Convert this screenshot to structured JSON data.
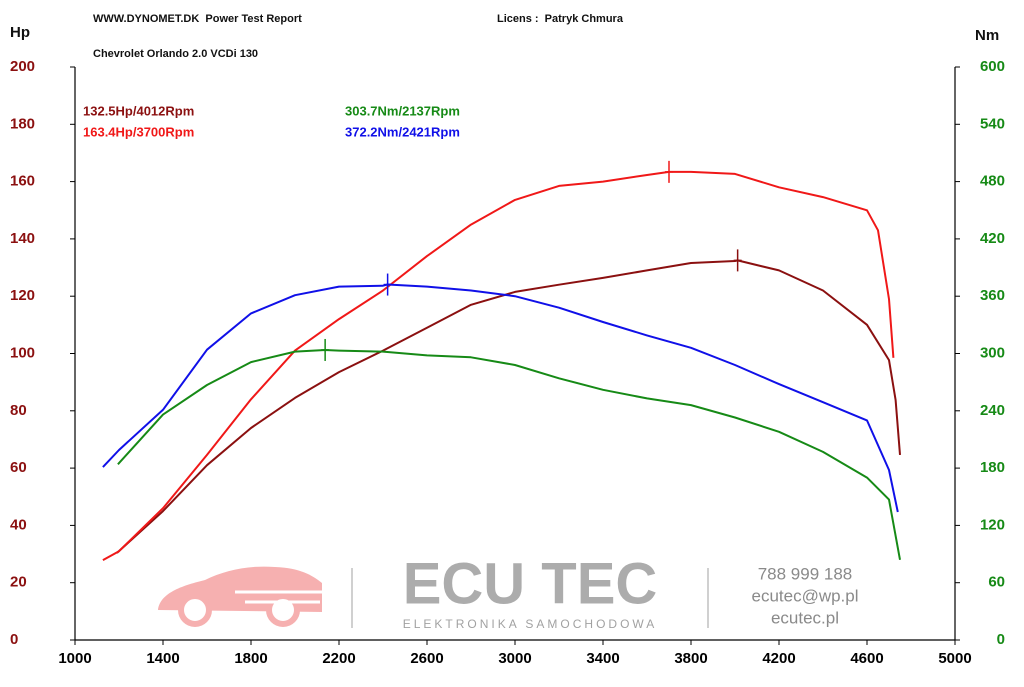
{
  "chart_data": {
    "type": "line",
    "title": "WWW.DYNOMET.DK  Power Test Report",
    "license": "Licens :  Patryk Chmura",
    "subtitle": "Chevrolet Orlando 2.0 VCDi 130",
    "y_label": "Hp",
    "y2_label": "Nm",
    "xlim": [
      1000,
      5000
    ],
    "xticks": [
      1000,
      1400,
      1800,
      2200,
      2600,
      3000,
      3400,
      3800,
      4200,
      4600,
      5000
    ],
    "ylim": [
      0,
      200
    ],
    "yticks": [
      0,
      20,
      40,
      60,
      80,
      100,
      120,
      140,
      160,
      180,
      200
    ],
    "y2lim": [
      0,
      600
    ],
    "y2ticks": [
      0,
      60,
      120,
      180,
      240,
      300,
      360,
      420,
      480,
      540,
      600
    ],
    "y_color": "#8b1010",
    "y2_color": "#168a16",
    "grid": false,
    "series": [
      {
        "name": "132.5Hp/4012Rpm",
        "color": "#8b1010",
        "axis": "y",
        "x": [
          1191,
          1400,
          1600,
          1800,
          2000,
          2200,
          2400,
          2600,
          2800,
          3000,
          3200,
          3400,
          3600,
          3800,
          4000,
          4012,
          4200,
          4400,
          4600,
          4700,
          4730,
          4750
        ],
        "values": [
          30.4,
          45,
          61,
          74,
          84.5,
          93.5,
          101,
          109,
          117,
          121.5,
          124,
          126.4,
          129,
          131.6,
          132.3,
          132.5,
          129,
          122,
          110,
          97.7,
          83.8,
          64.6
        ],
        "peak": {
          "x": 4012,
          "y": 132.5
        }
      },
      {
        "name": "163.4Hp/3700Rpm",
        "color": "#f01818",
        "axis": "y",
        "x": [
          1127,
          1200,
          1400,
          1600,
          1800,
          2000,
          2200,
          2400,
          2600,
          2800,
          3000,
          3200,
          3400,
          3600,
          3700,
          3800,
          4000,
          4200,
          4400,
          4600,
          4650,
          4700,
          4720
        ],
        "values": [
          27.9,
          31,
          46,
          64.6,
          84,
          101,
          112,
          122,
          134,
          145,
          153.6,
          158.5,
          160,
          162.3,
          163.4,
          163.4,
          162.7,
          158,
          154.6,
          150,
          143,
          119,
          98.5
        ],
        "peak": {
          "x": 3700,
          "y": 163.4
        }
      },
      {
        "name": "303.7Nm/2137Rpm",
        "color": "#168a16",
        "axis": "y2",
        "x": [
          1195,
          1400,
          1600,
          1800,
          2000,
          2137,
          2200,
          2400,
          2600,
          2800,
          3000,
          3200,
          3400,
          3600,
          3800,
          4000,
          4200,
          4400,
          4600,
          4700,
          4750
        ],
        "values": [
          184,
          236,
          267,
          291,
          302,
          303.7,
          303,
          302,
          298,
          296,
          288,
          274,
          262,
          253,
          246,
          233,
          218,
          197,
          170,
          147,
          84
        ],
        "peak": {
          "x": 2137,
          "y": 303.7
        }
      },
      {
        "name": "372.2Nm/2421Rpm",
        "color": "#1010e8",
        "axis": "y2",
        "x": [
          1127,
          1200,
          1400,
          1600,
          1800,
          2000,
          2200,
          2400,
          2421,
          2600,
          2800,
          3000,
          3200,
          3400,
          3600,
          3800,
          4000,
          4200,
          4400,
          4600,
          4700,
          4740
        ],
        "values": [
          181,
          199,
          241,
          304,
          342,
          361,
          370,
          371,
          372.2,
          370,
          366,
          360,
          348,
          333,
          319,
          306,
          288,
          268,
          249,
          230,
          178,
          134
        ],
        "peak": {
          "x": 2421,
          "y": 372.2
        }
      }
    ],
    "watermark": {
      "brand": "ECU TEC",
      "tagline": "ELEKTRONIKA SAMOCHODOWA",
      "phone": "788 999 188",
      "email": "ecutec@wp.pl",
      "web": "ecutec.pl"
    }
  }
}
